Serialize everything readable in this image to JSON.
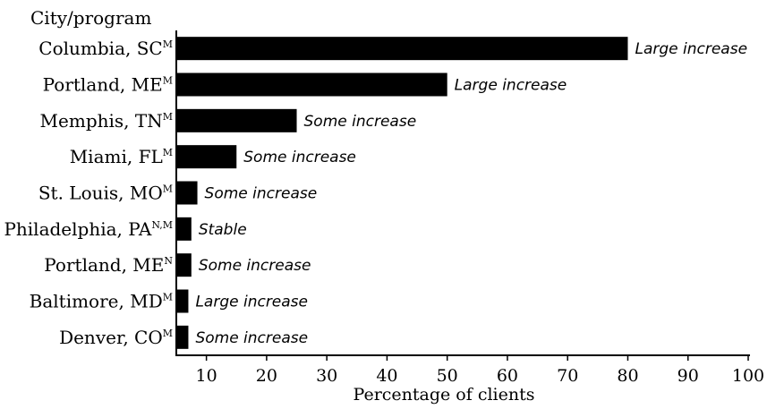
{
  "chart_data": {
    "type": "bar",
    "orientation": "horizontal",
    "ylabel": "City/program",
    "xlabel": "Percentage of clients",
    "xlim": [
      5,
      100
    ],
    "xticks": [
      10,
      20,
      30,
      40,
      50,
      60,
      70,
      80,
      90,
      100
    ],
    "categories": [
      {
        "name": "Columbia, SC",
        "sup": "M"
      },
      {
        "name": "Portland, ME",
        "sup": "M"
      },
      {
        "name": "Memphis, TN",
        "sup": "M"
      },
      {
        "name": "Miami, FL",
        "sup": "M"
      },
      {
        "name": "St. Louis, MO",
        "sup": "M"
      },
      {
        "name": "Philadelphia, PA",
        "sup": "N,M"
      },
      {
        "name": "Portland, ME",
        "sup": "N"
      },
      {
        "name": "Baltimore, MD",
        "sup": "M"
      },
      {
        "name": "Denver, CO",
        "sup": "M"
      }
    ],
    "values": [
      80,
      50,
      25,
      15,
      8.5,
      7.5,
      7.5,
      7,
      7
    ],
    "annotations": [
      "Large increase",
      "Large increase",
      "Some increase",
      "Some increase",
      "Some increase",
      "Stable",
      "Some increase",
      "Large increase",
      "Some increase"
    ],
    "grid": false,
    "legend": "none"
  }
}
